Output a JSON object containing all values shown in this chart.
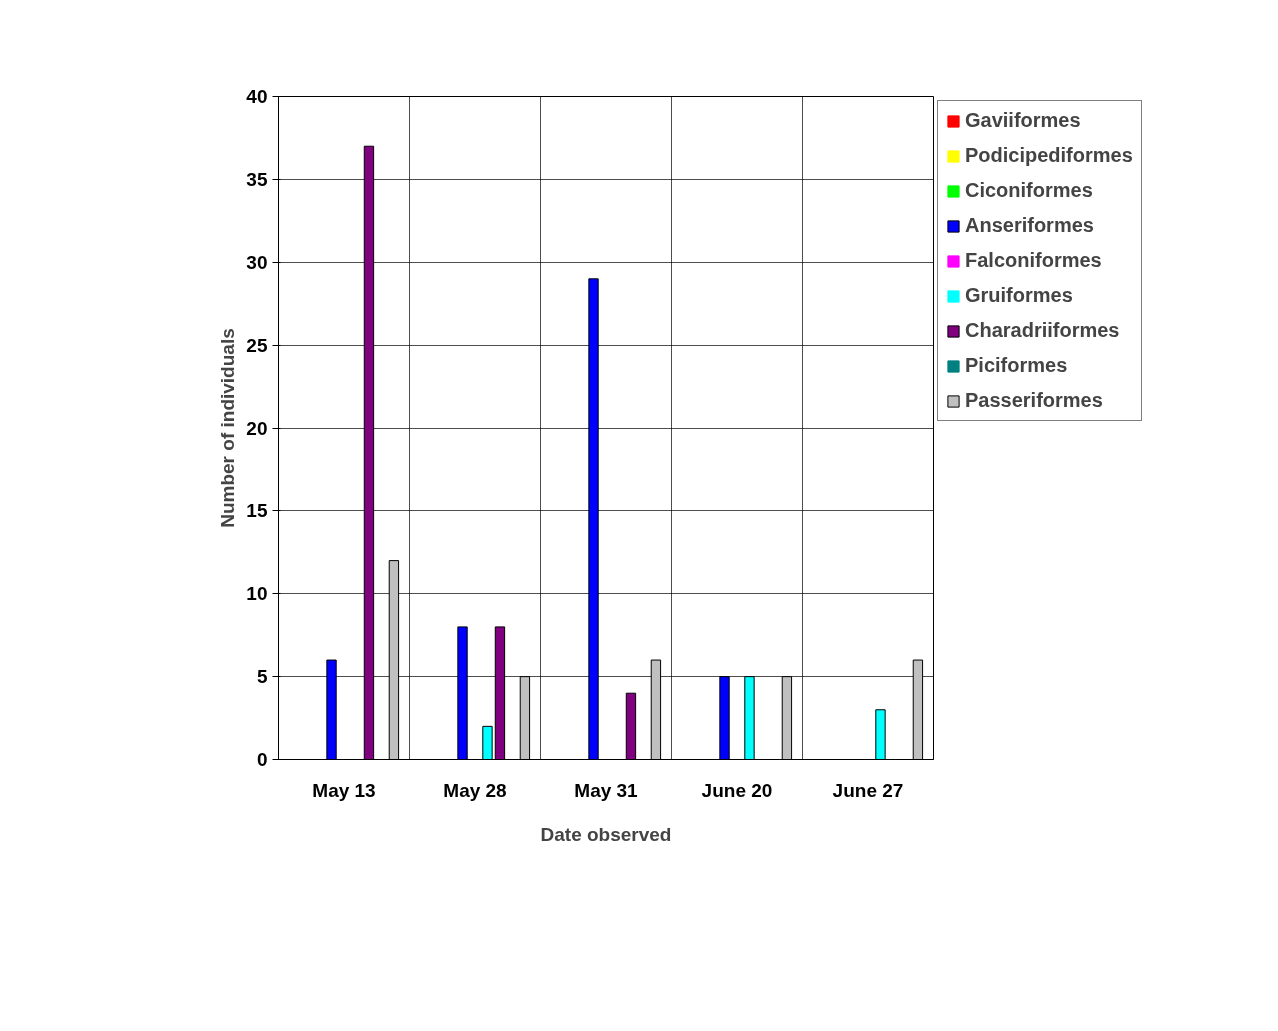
{
  "chart_data": {
    "type": "bar",
    "xlabel": "Date observed",
    "ylabel": "Number of individuals",
    "categories": [
      "May 13",
      "May 28",
      "May 31",
      "June 20",
      "June 27"
    ],
    "series": [
      {
        "name": "Gaviiformes",
        "color": "#ff0000",
        "values": [
          0,
          0,
          0,
          0,
          0
        ]
      },
      {
        "name": "Podicipediformes",
        "color": "#ffff00",
        "values": [
          0,
          0,
          0,
          0,
          0
        ]
      },
      {
        "name": "Ciconiformes",
        "color": "#00ff00",
        "values": [
          0,
          0,
          0,
          0,
          0
        ]
      },
      {
        "name": "Anseriformes",
        "color": "#0000ff",
        "values": [
          6,
          8,
          29,
          5,
          0
        ]
      },
      {
        "name": "Falconiformes",
        "color": "#ff00ff",
        "values": [
          0,
          0,
          0,
          0,
          0
        ]
      },
      {
        "name": "Gruiformes",
        "color": "#00ffff",
        "values": [
          0,
          2,
          0,
          5,
          3
        ]
      },
      {
        "name": "Charadriiformes",
        "color": "#800080",
        "values": [
          37,
          8,
          4,
          0,
          0
        ]
      },
      {
        "name": "Piciformes",
        "color": "#008080",
        "values": [
          0,
          0,
          0,
          0,
          0
        ]
      },
      {
        "name": "Passeriformes",
        "color": "#c0c0c0",
        "values": [
          12,
          5,
          6,
          5,
          6
        ]
      }
    ],
    "ylim": [
      0,
      40
    ],
    "yticks": [
      0,
      5,
      10,
      15,
      20,
      25,
      30,
      35,
      40
    ],
    "grid": true,
    "legend": "right"
  }
}
